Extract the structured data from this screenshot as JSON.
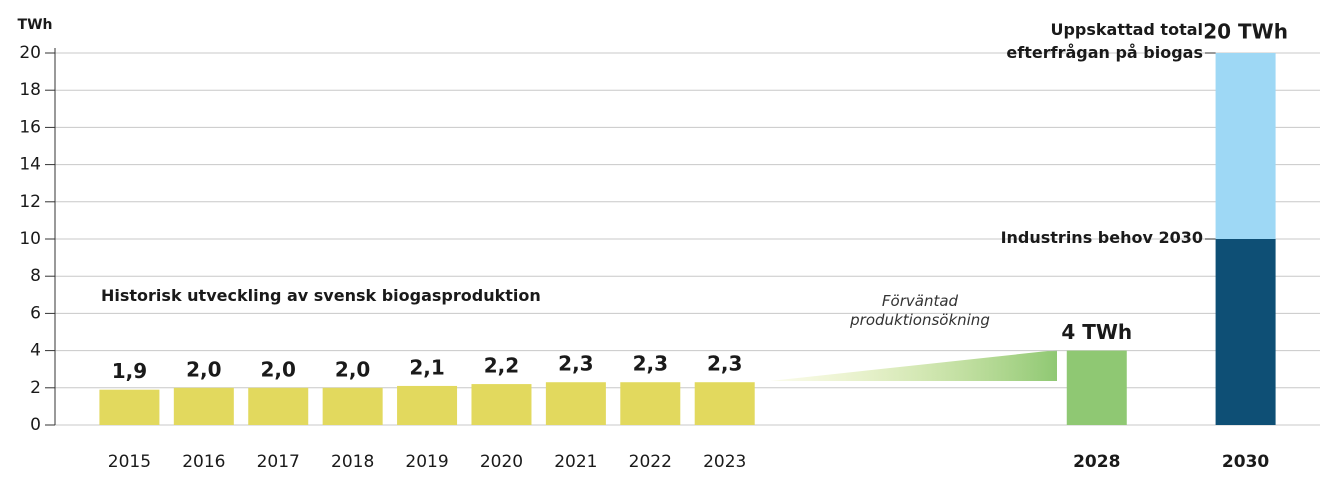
{
  "chart_data": {
    "type": "bar",
    "y_unit": "TWh",
    "x": [
      2015,
      2016,
      2017,
      2018,
      2019,
      2020,
      2021,
      2022,
      2023,
      2028,
      2030
    ],
    "xlim": [
      2014,
      2031
    ],
    "ylim": [
      0,
      20
    ],
    "yticks": [
      0,
      2,
      4,
      6,
      8,
      10,
      12,
      14,
      16,
      18,
      20
    ],
    "grid": true,
    "series": [
      {
        "name": "Historisk utveckling av svensk biogasproduktion",
        "color": "#e2d95e",
        "values": [
          1.9,
          2.0,
          2.0,
          2.0,
          2.1,
          2.2,
          2.3,
          2.3,
          2.3,
          null,
          null
        ],
        "value_labels": [
          "1,9",
          "2,0",
          "2,0",
          "2,0",
          "2,1",
          "2,2",
          "2,3",
          "2,3",
          "2,3",
          null,
          null
        ]
      },
      {
        "color": "#8fc873",
        "values": [
          null,
          null,
          null,
          null,
          null,
          null,
          null,
          null,
          null,
          4,
          null
        ],
        "value_labels": [
          null,
          null,
          null,
          null,
          null,
          null,
          null,
          null,
          null,
          "4 TWh",
          null
        ]
      },
      {
        "name": "Industrins behov 2030",
        "color": "#0e4f75",
        "values": [
          null,
          null,
          null,
          null,
          null,
          null,
          null,
          null,
          null,
          null,
          10
        ]
      },
      {
        "name": "Uppskattad total\nefterfrågan på biogas",
        "color": "#9ed8f5",
        "values": [
          null,
          null,
          null,
          null,
          null,
          null,
          null,
          null,
          null,
          null,
          10
        ]
      }
    ],
    "annotations": [
      {
        "text": "Förväntad\nproduktionsökning"
      },
      {
        "text": "20 TWh",
        "value": 20
      }
    ]
  }
}
